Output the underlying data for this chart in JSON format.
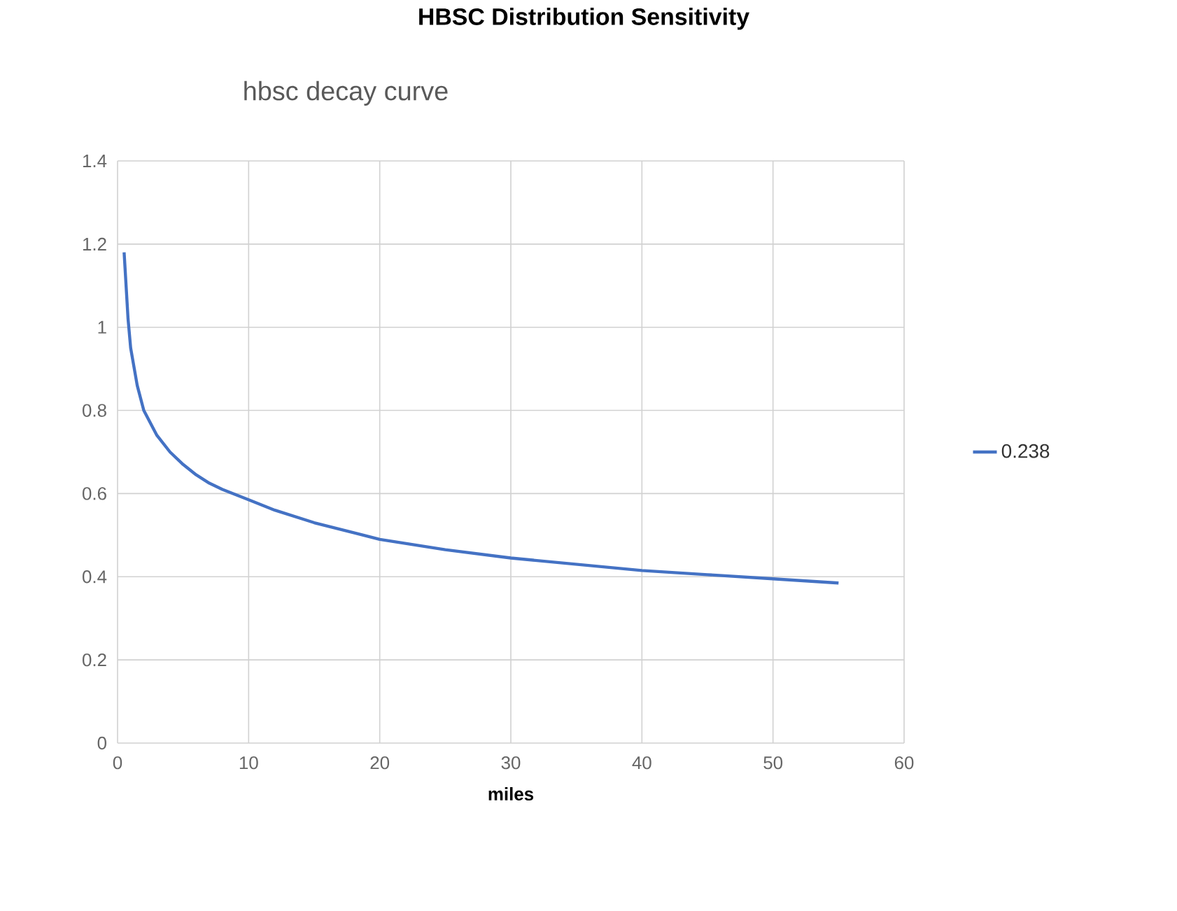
{
  "chart_data": {
    "type": "line",
    "title": "hbsc decay curve",
    "annotations": [
      "HBSC Distribution Sensitivity"
    ],
    "xlabel": "miles",
    "series": [
      {
        "name": "0.238",
        "color": "#4472c4",
        "x": [
          0.5,
          0.8,
          1,
          1.5,
          2,
          3,
          4,
          5,
          6,
          7,
          8,
          10,
          12,
          15,
          20,
          25,
          30,
          35,
          40,
          45,
          50,
          55
        ],
        "values": [
          1.18,
          1.02,
          0.95,
          0.86,
          0.8,
          0.74,
          0.7,
          0.67,
          0.645,
          0.625,
          0.61,
          0.585,
          0.56,
          0.53,
          0.49,
          0.465,
          0.445,
          0.43,
          0.415,
          0.405,
          0.395,
          0.385
        ]
      }
    ],
    "xlim": [
      0,
      60
    ],
    "ylim": [
      0,
      1.4
    ],
    "xticks": [
      0,
      10,
      20,
      30,
      40,
      50,
      60
    ],
    "yticks": [
      0,
      0.2,
      0.4,
      0.6,
      0.8,
      1,
      1.2,
      1.4
    ],
    "grid": true,
    "legend": "right",
    "marker": "none",
    "line_style": "solid"
  }
}
